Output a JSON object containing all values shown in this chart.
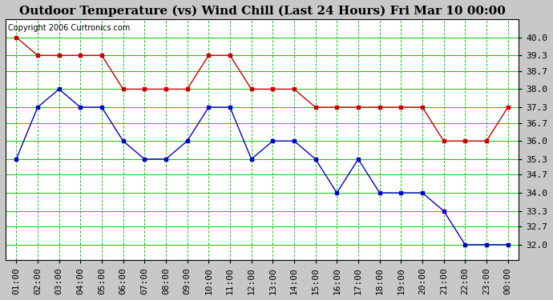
{
  "title": "Outdoor Temperature (vs) Wind Chill (Last 24 Hours) Fri Mar 10 00:00",
  "copyright": "Copyright 2006 Curtronics.com",
  "x_labels": [
    "01:00",
    "02:00",
    "03:00",
    "04:00",
    "05:00",
    "06:00",
    "07:00",
    "08:00",
    "09:00",
    "10:00",
    "11:00",
    "12:00",
    "13:00",
    "14:00",
    "15:00",
    "16:00",
    "17:00",
    "18:00",
    "19:00",
    "20:00",
    "21:00",
    "22:00",
    "23:00",
    "00:00"
  ],
  "red_data": [
    40.0,
    39.3,
    39.3,
    39.3,
    39.3,
    38.0,
    38.0,
    38.0,
    38.0,
    39.3,
    39.3,
    38.0,
    38.0,
    38.0,
    37.3,
    37.3,
    37.3,
    37.3,
    37.3,
    37.3,
    36.0,
    36.0,
    36.0,
    37.3
  ],
  "blue_data": [
    35.3,
    37.3,
    38.0,
    37.3,
    37.3,
    36.0,
    35.3,
    35.3,
    36.0,
    37.3,
    37.3,
    35.3,
    36.0,
    36.0,
    35.3,
    34.0,
    35.3,
    34.0,
    34.0,
    34.0,
    33.3,
    32.0,
    32.0,
    32.0
  ],
  "ylim": [
    31.4,
    40.7
  ],
  "yticks": [
    32.0,
    32.7,
    33.3,
    34.0,
    34.7,
    35.3,
    36.0,
    36.7,
    37.3,
    38.0,
    38.7,
    39.3,
    40.0
  ],
  "red_color": "#cc0000",
  "blue_color": "#0000cc",
  "bg_color": "#c8c8c8",
  "plot_bg_color": "#ffffff",
  "grid_color_solid": "#00cc00",
  "grid_color_dash": "#00cc00",
  "title_fontsize": 11,
  "copyright_fontsize": 7,
  "tick_fontsize": 8
}
